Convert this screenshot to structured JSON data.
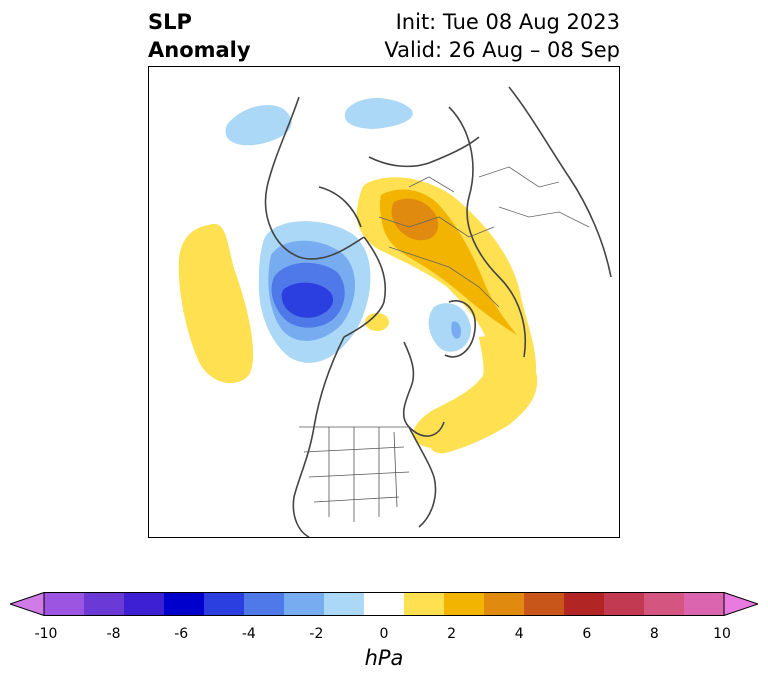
{
  "title": {
    "left_line1": "SLP",
    "left_line2": "Anomaly",
    "right_line1": "Init: Tue 08 Aug 2023",
    "right_line2": "Valid: 26 Aug – 08 Sep"
  },
  "map": {
    "projection": "polar-stereographic",
    "region": "North America / North Atlantic / Arctic"
  },
  "colorbar": {
    "label": "hPa",
    "ticks": [
      "-10",
      "-8",
      "-6",
      "-4",
      "-2",
      "0",
      "2",
      "4",
      "6",
      "8",
      "10"
    ],
    "levels": [
      -10,
      -9,
      -8,
      -7,
      -6,
      -5,
      -4,
      -3,
      -2,
      -1,
      1,
      2,
      3,
      4,
      5,
      6,
      7,
      8,
      9,
      10
    ],
    "colors": [
      "#d07be8",
      "#9c55e0",
      "#6b3ad6",
      "#3d1fd4",
      "#0000cc",
      "#2b3fe0",
      "#4f78e8",
      "#78acf0",
      "#acd8f8",
      "#ffffff",
      "#ffe050",
      "#f2b400",
      "#e08a10",
      "#c8561a",
      "#b22525",
      "#c23a52",
      "#d45580",
      "#dc65b0",
      "#e87ae0"
    ]
  }
}
